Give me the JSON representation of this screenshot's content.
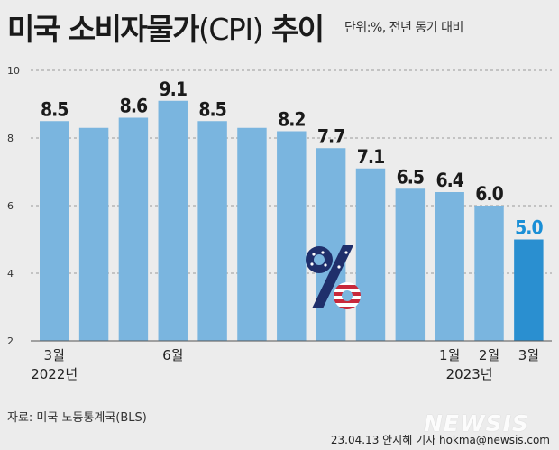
{
  "header": {
    "title_bold": "미국 소비자물가",
    "title_paren": "(CPI)",
    "title_tail": " 추이",
    "unit": "단위:%, 전년 동기 대비"
  },
  "chart_data": {
    "type": "bar",
    "categories": [
      "2022-03",
      "2022-04",
      "2022-05",
      "2022-06",
      "2022-07",
      "2022-08",
      "2022-09",
      "2022-10",
      "2022-11",
      "2022-12",
      "2023-01",
      "2023-02",
      "2023-03"
    ],
    "values": [
      8.5,
      8.3,
      8.6,
      9.1,
      8.5,
      8.3,
      8.2,
      7.7,
      7.1,
      6.5,
      6.4,
      6.0,
      5.0
    ],
    "data_labels": [
      "8.5",
      "",
      "8.6",
      "9.1",
      "8.5",
      "",
      "8.2",
      "7.7",
      "7.1",
      "6.5",
      "6.4",
      "6.0",
      "5.0"
    ],
    "x_tick_labels": [
      "3월",
      "",
      "",
      "6월",
      "",
      "",
      "",
      "",
      "",
      "",
      "1월",
      "2월",
      "3월"
    ],
    "year_labels": [
      {
        "index": 0,
        "text": "2022년"
      },
      {
        "index": 10.5,
        "text": "2023년"
      }
    ],
    "yticks": [
      2,
      4,
      6,
      8,
      10
    ],
    "ylim": [
      2,
      10
    ],
    "grid": "dashed horizontal",
    "colors": {
      "bar": "#7ab5df",
      "highlight_bar": "#2a8fd0",
      "highlight_label": "#1a8fd6",
      "label": "#1a1a1a"
    },
    "highlight_index": 12,
    "title": "",
    "xlabel": "",
    "ylabel": ""
  },
  "decoration": {
    "icon": "percent-flag-icon"
  },
  "footer": {
    "source": "자료: 미국 노동통계국(BLS)",
    "credit": "23.04.13 안지혜 기자 hokma@newsis.com",
    "watermark": "NEWSIS"
  }
}
